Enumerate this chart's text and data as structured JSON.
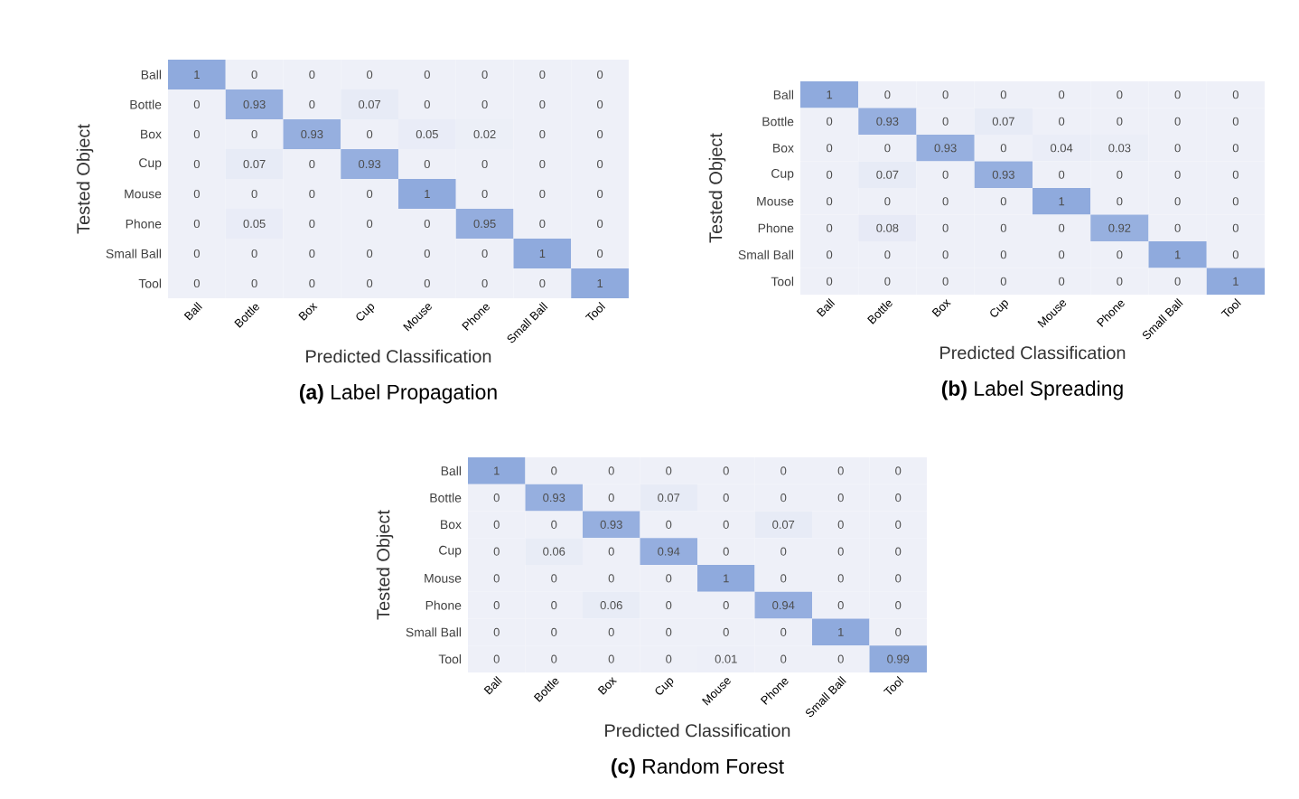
{
  "chart_data": [
    {
      "type": "heatmap",
      "data_labels": true,
      "title": "**(a)** Label Propagation",
      "xlabel": "Predicted Classification",
      "ylabel": "Tested Object",
      "categories": [
        "Ball",
        "Bottle",
        "Box",
        "Cup",
        "Mouse",
        "Phone",
        "Small Ball",
        "Tool"
      ],
      "y_categories": [
        "Ball",
        "Bottle",
        "Box",
        "Cup",
        "Mouse",
        "Phone",
        "Small Ball",
        "Tool"
      ],
      "cells": [
        [
          1,
          0,
          0,
          0,
          0,
          0,
          0,
          0
        ],
        [
          0,
          0.93,
          0,
          0.07,
          0,
          0,
          0,
          0
        ],
        [
          0,
          0,
          0.93,
          0,
          0.05,
          0.02,
          0,
          0
        ],
        [
          0,
          0.07,
          0,
          0.93,
          0,
          0,
          0,
          0
        ],
        [
          0,
          0,
          0,
          0,
          1,
          0,
          0,
          0
        ],
        [
          0,
          0.05,
          0,
          0,
          0,
          0.95,
          0,
          0
        ],
        [
          0,
          0,
          0,
          0,
          0,
          0,
          1,
          0
        ],
        [
          0,
          0,
          0,
          0,
          0,
          0,
          0,
          1
        ]
      ]
    },
    {
      "type": "heatmap",
      "data_labels": true,
      "title": "**(b)** Label Spreading",
      "xlabel": "Predicted Classification",
      "ylabel": "Tested Object",
      "categories": [
        "Ball",
        "Bottle",
        "Box",
        "Cup",
        "Mouse",
        "Phone",
        "Small Ball",
        "Tool"
      ],
      "y_categories": [
        "Ball",
        "Bottle",
        "Box",
        "Cup",
        "Mouse",
        "Phone",
        "Small Ball",
        "Tool"
      ],
      "cells": [
        [
          1,
          0,
          0,
          0,
          0,
          0,
          0,
          0
        ],
        [
          0,
          0.93,
          0,
          0.07,
          0,
          0,
          0,
          0
        ],
        [
          0,
          0,
          0.93,
          0,
          0.04,
          0.03,
          0,
          0
        ],
        [
          0,
          0.07,
          0,
          0.93,
          0,
          0,
          0,
          0
        ],
        [
          0,
          0,
          0,
          0,
          1,
          0,
          0,
          0
        ],
        [
          0,
          0.08,
          0,
          0,
          0,
          0.92,
          0,
          0
        ],
        [
          0,
          0,
          0,
          0,
          0,
          0,
          1,
          0
        ],
        [
          0,
          0,
          0,
          0,
          0,
          0,
          0,
          1
        ]
      ]
    },
    {
      "type": "heatmap",
      "data_labels": true,
      "title": "**(c)** Random Forest",
      "xlabel": "Predicted Classification",
      "ylabel": "Tested Object",
      "categories": [
        "Ball",
        "Bottle",
        "Box",
        "Cup",
        "Mouse",
        "Phone",
        "Small Ball",
        "Tool"
      ],
      "y_categories": [
        "Ball",
        "Bottle",
        "Box",
        "Cup",
        "Mouse",
        "Phone",
        "Small Ball",
        "Tool"
      ],
      "cells": [
        [
          1,
          0,
          0,
          0,
          0,
          0,
          0,
          0
        ],
        [
          0,
          0.93,
          0,
          0.07,
          0,
          0,
          0,
          0
        ],
        [
          0,
          0,
          0.93,
          0,
          0,
          0.07,
          0,
          0
        ],
        [
          0,
          0.06,
          0,
          0.94,
          0,
          0,
          0,
          0
        ],
        [
          0,
          0,
          0,
          0,
          1,
          0,
          0,
          0
        ],
        [
          0,
          0,
          0.06,
          0,
          0,
          0.94,
          0,
          0
        ],
        [
          0,
          0,
          0,
          0,
          0,
          0,
          1,
          0
        ],
        [
          0,
          0,
          0,
          0,
          0.01,
          0,
          0,
          0.99
        ]
      ]
    }
  ]
}
